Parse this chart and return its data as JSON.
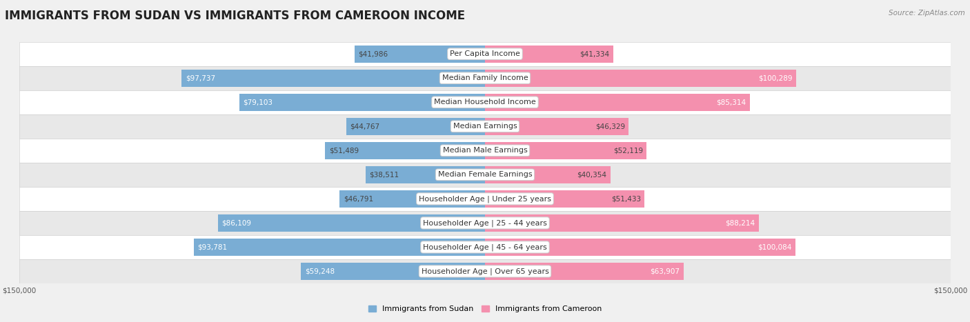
{
  "title": "IMMIGRANTS FROM SUDAN VS IMMIGRANTS FROM CAMEROON INCOME",
  "source": "Source: ZipAtlas.com",
  "categories": [
    "Per Capita Income",
    "Median Family Income",
    "Median Household Income",
    "Median Earnings",
    "Median Male Earnings",
    "Median Female Earnings",
    "Householder Age | Under 25 years",
    "Householder Age | 25 - 44 years",
    "Householder Age | 45 - 64 years",
    "Householder Age | Over 65 years"
  ],
  "sudan_values": [
    41986,
    97737,
    79103,
    44767,
    51489,
    38511,
    46791,
    86109,
    93781,
    59248
  ],
  "cameroon_values": [
    41334,
    100289,
    85314,
    46329,
    52119,
    40354,
    51433,
    88214,
    100084,
    63907
  ],
  "sudan_color": "#7aadd4",
  "cameroon_color": "#f490ae",
  "max_value": 150000,
  "legend_sudan": "Immigrants from Sudan",
  "legend_cameroon": "Immigrants from Cameroon",
  "bg_color": "#f0f0f0",
  "white_row": "#ffffff",
  "gray_row": "#e8e8e8",
  "title_fontsize": 12,
  "source_fontsize": 7.5,
  "label_fontsize": 8,
  "value_fontsize": 7.5,
  "bar_height": 0.72,
  "white_text_threshold": 55000
}
